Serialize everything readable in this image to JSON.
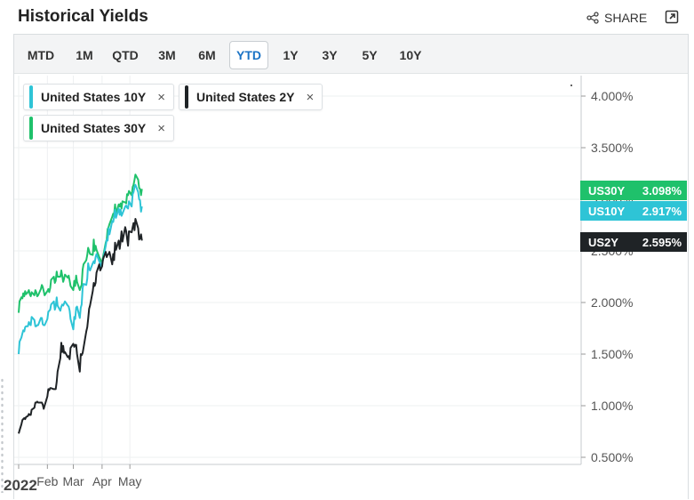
{
  "header": {
    "title": "Historical Yields",
    "share_label": "SHARE"
  },
  "tabs": [
    {
      "label": "MTD",
      "active": false
    },
    {
      "label": "1M",
      "active": false
    },
    {
      "label": "QTD",
      "active": false
    },
    {
      "label": "3M",
      "active": false
    },
    {
      "label": "6M",
      "active": false
    },
    {
      "label": "YTD",
      "active": true
    },
    {
      "label": "1Y",
      "active": false
    },
    {
      "label": "3Y",
      "active": false
    },
    {
      "label": "5Y",
      "active": false
    },
    {
      "label": "10Y",
      "active": false
    }
  ],
  "legend": [
    {
      "label": "United States 10Y",
      "color": "#2ec4d6",
      "remove_symbol": "×"
    },
    {
      "label": "United States 2Y",
      "color": "#1f2326",
      "remove_symbol": "×"
    },
    {
      "label": "United States 30Y",
      "color": "#1fc16b",
      "remove_symbol": "×"
    }
  ],
  "last_value_tags": [
    {
      "symbol": "US30Y",
      "value": "3.098%",
      "color": "#1fc16b"
    },
    {
      "symbol": "US10Y",
      "value": "2.917%",
      "color": "#2ec4d6"
    },
    {
      "symbol": "US2Y",
      "value": "2.595%",
      "color": "#1f2326"
    }
  ],
  "chart_data": {
    "type": "line",
    "title": "",
    "xlabel": "",
    "ylabel": "",
    "x_tick_labels": [
      "2022",
      "Feb",
      "Mar",
      "Apr",
      "May"
    ],
    "x_tick_days": [
      0,
      31,
      59,
      90,
      120
    ],
    "x_range_days": [
      0,
      135
    ],
    "y_tick_labels": [
      "0.500%",
      "1.000%",
      "1.500%",
      "2.000%",
      "2.500%",
      "3.000%",
      "3.500%",
      "4.000%"
    ],
    "y_ticks": [
      0.5,
      1.0,
      1.5,
      2.0,
      2.5,
      3.0,
      3.5,
      4.0
    ],
    "ylim": [
      0.45,
      4.2
    ],
    "grid": true,
    "series": [
      {
        "name": "United States 30Y",
        "color": "#1fc16b",
        "points": [
          [
            0,
            1.9
          ],
          [
            1,
            2.01
          ],
          [
            3,
            2.05
          ],
          [
            4,
            2.04
          ],
          [
            5,
            2.09
          ],
          [
            6,
            2.06
          ],
          [
            7,
            2.11
          ],
          [
            8,
            2.08
          ],
          [
            10,
            2.1
          ],
          [
            11,
            2.12
          ],
          [
            12,
            2.08
          ],
          [
            13,
            2.06
          ],
          [
            14,
            2.1
          ],
          [
            17,
            2.07
          ],
          [
            18,
            2.12
          ],
          [
            19,
            2.1
          ],
          [
            20,
            2.06
          ],
          [
            21,
            2.07
          ],
          [
            24,
            2.13
          ],
          [
            25,
            2.17
          ],
          [
            26,
            2.15
          ],
          [
            27,
            2.11
          ],
          [
            28,
            2.07
          ],
          [
            31,
            2.11
          ],
          [
            32,
            2.13
          ],
          [
            33,
            2.1
          ],
          [
            34,
            2.14
          ],
          [
            35,
            2.22
          ],
          [
            38,
            2.25
          ],
          [
            39,
            2.19
          ],
          [
            40,
            2.21
          ],
          [
            41,
            2.3
          ],
          [
            42,
            2.25
          ],
          [
            45,
            2.25
          ],
          [
            46,
            2.31
          ],
          [
            47,
            2.26
          ],
          [
            48,
            2.2
          ],
          [
            49,
            2.23
          ],
          [
            50,
            2.27
          ],
          [
            53,
            2.24
          ],
          [
            54,
            2.26
          ],
          [
            55,
            2.21
          ],
          [
            56,
            2.16
          ],
          [
            59,
            2.12
          ],
          [
            60,
            2.21
          ],
          [
            61,
            2.16
          ],
          [
            62,
            2.26
          ],
          [
            63,
            2.2
          ],
          [
            66,
            2.12
          ],
          [
            67,
            2.15
          ],
          [
            68,
            2.17
          ],
          [
            69,
            2.32
          ],
          [
            70,
            2.37
          ],
          [
            73,
            2.41
          ],
          [
            74,
            2.46
          ],
          [
            75,
            2.53
          ],
          [
            76,
            2.5
          ],
          [
            77,
            2.47
          ],
          [
            80,
            2.46
          ],
          [
            81,
            2.61
          ],
          [
            82,
            2.5
          ],
          [
            83,
            2.55
          ],
          [
            84,
            2.51
          ],
          [
            87,
            2.44
          ],
          [
            88,
            2.42
          ],
          [
            89,
            2.4
          ],
          [
            90,
            2.38
          ],
          [
            91,
            2.44
          ],
          [
            94,
            2.58
          ],
          [
            95,
            2.61
          ],
          [
            96,
            2.71
          ],
          [
            97,
            2.73
          ],
          [
            98,
            2.76
          ],
          [
            101,
            2.83
          ],
          [
            102,
            2.86
          ],
          [
            103,
            2.86
          ],
          [
            104,
            2.95
          ],
          [
            105,
            2.86
          ],
          [
            108,
            2.95
          ],
          [
            109,
            2.93
          ],
          [
            110,
            2.96
          ],
          [
            111,
            2.91
          ],
          [
            112,
            2.98
          ],
          [
            115,
            2.97
          ],
          [
            116,
            2.96
          ],
          [
            117,
            3.05
          ],
          [
            118,
            3.04
          ],
          [
            119,
            3.08
          ],
          [
            122,
            3.04
          ],
          [
            123,
            3.12
          ],
          [
            124,
            3.14
          ],
          [
            125,
            3.19
          ],
          [
            126,
            3.24
          ],
          [
            129,
            3.19
          ],
          [
            130,
            3.11
          ],
          [
            131,
            3.1
          ],
          [
            132,
            3.04
          ],
          [
            133,
            3.1
          ]
        ]
      },
      {
        "name": "United States 10Y",
        "color": "#2ec4d6",
        "points": [
          [
            0,
            1.5
          ],
          [
            1,
            1.62
          ],
          [
            3,
            1.66
          ],
          [
            4,
            1.7
          ],
          [
            5,
            1.73
          ],
          [
            6,
            1.72
          ],
          [
            7,
            1.76
          ],
          [
            8,
            1.77
          ],
          [
            10,
            1.77
          ],
          [
            11,
            1.81
          ],
          [
            12,
            1.79
          ],
          [
            13,
            1.78
          ],
          [
            14,
            1.86
          ],
          [
            17,
            1.83
          ],
          [
            18,
            1.77
          ],
          [
            19,
            1.77
          ],
          [
            20,
            1.78
          ],
          [
            21,
            1.78
          ],
          [
            24,
            1.85
          ],
          [
            25,
            1.85
          ],
          [
            26,
            1.79
          ],
          [
            27,
            1.78
          ],
          [
            28,
            1.78
          ],
          [
            31,
            1.84
          ],
          [
            32,
            1.91
          ],
          [
            33,
            1.92
          ],
          [
            34,
            1.93
          ],
          [
            35,
            1.98
          ],
          [
            38,
            2.01
          ],
          [
            39,
            1.93
          ],
          [
            40,
            1.96
          ],
          [
            41,
            2.05
          ],
          [
            42,
            1.97
          ],
          [
            45,
            1.92
          ],
          [
            46,
            1.96
          ],
          [
            47,
            1.98
          ],
          [
            48,
            1.97
          ],
          [
            49,
            1.99
          ],
          [
            50,
            2.01
          ],
          [
            53,
            1.97
          ],
          [
            54,
            1.96
          ],
          [
            55,
            1.92
          ],
          [
            56,
            1.84
          ],
          [
            59,
            1.74
          ],
          [
            60,
            1.86
          ],
          [
            61,
            1.84
          ],
          [
            62,
            1.95
          ],
          [
            63,
            1.96
          ],
          [
            66,
            1.85
          ],
          [
            67,
            1.95
          ],
          [
            68,
            1.98
          ],
          [
            69,
            2.14
          ],
          [
            70,
            2.18
          ],
          [
            73,
            2.17
          ],
          [
            74,
            2.23
          ],
          [
            75,
            2.38
          ],
          [
            76,
            2.33
          ],
          [
            77,
            2.31
          ],
          [
            80,
            2.38
          ],
          [
            81,
            2.4
          ],
          [
            82,
            2.38
          ],
          [
            83,
            2.44
          ],
          [
            84,
            2.47
          ],
          [
            87,
            2.4
          ],
          [
            88,
            2.37
          ],
          [
            89,
            2.35
          ],
          [
            90,
            2.39
          ],
          [
            91,
            2.41
          ],
          [
            94,
            2.55
          ],
          [
            95,
            2.61
          ],
          [
            96,
            2.6
          ],
          [
            97,
            2.72
          ],
          [
            98,
            2.66
          ],
          [
            101,
            2.79
          ],
          [
            102,
            2.78
          ],
          [
            103,
            2.83
          ],
          [
            104,
            2.9
          ],
          [
            105,
            2.82
          ],
          [
            108,
            2.91
          ],
          [
            109,
            2.85
          ],
          [
            110,
            2.9
          ],
          [
            111,
            2.84
          ],
          [
            112,
            2.86
          ],
          [
            115,
            2.93
          ],
          [
            116,
            2.94
          ],
          [
            117,
            2.92
          ],
          [
            118,
            2.91
          ],
          [
            119,
            2.98
          ],
          [
            122,
            2.93
          ],
          [
            123,
            3.05
          ],
          [
            124,
            3.07
          ],
          [
            125,
            3.12
          ],
          [
            126,
            3.14
          ],
          [
            129,
            3.07
          ],
          [
            130,
            3.0
          ],
          [
            131,
            2.99
          ],
          [
            132,
            2.88
          ],
          [
            133,
            2.93
          ]
        ]
      },
      {
        "name": "United States 2Y",
        "color": "#1f2326",
        "points": [
          [
            0,
            0.73
          ],
          [
            1,
            0.76
          ],
          [
            3,
            0.82
          ],
          [
            4,
            0.86
          ],
          [
            5,
            0.87
          ],
          [
            6,
            0.88
          ],
          [
            7,
            0.87
          ],
          [
            8,
            0.89
          ],
          [
            10,
            0.9
          ],
          [
            11,
            0.92
          ],
          [
            12,
            0.91
          ],
          [
            13,
            0.91
          ],
          [
            14,
            0.96
          ],
          [
            17,
            0.98
          ],
          [
            18,
            1.03
          ],
          [
            19,
            1.03
          ],
          [
            20,
            1.04
          ],
          [
            21,
            1.03
          ],
          [
            24,
            1.03
          ],
          [
            25,
            1.03
          ],
          [
            26,
            1.01
          ],
          [
            27,
            0.97
          ],
          [
            28,
            1.0
          ],
          [
            31,
            1.09
          ],
          [
            32,
            1.16
          ],
          [
            33,
            1.15
          ],
          [
            34,
            1.17
          ],
          [
            35,
            1.17
          ],
          [
            38,
            1.16
          ],
          [
            39,
            1.16
          ],
          [
            40,
            1.16
          ],
          [
            41,
            1.23
          ],
          [
            42,
            1.33
          ],
          [
            45,
            1.46
          ],
          [
            46,
            1.61
          ],
          [
            47,
            1.52
          ],
          [
            48,
            1.58
          ],
          [
            49,
            1.51
          ],
          [
            50,
            1.52
          ],
          [
            53,
            1.47
          ],
          [
            54,
            1.48
          ],
          [
            55,
            1.45
          ],
          [
            56,
            1.56
          ],
          [
            59,
            1.6
          ],
          [
            60,
            1.57
          ],
          [
            61,
            1.59
          ],
          [
            62,
            1.59
          ],
          [
            63,
            1.5
          ],
          [
            66,
            1.33
          ],
          [
            67,
            1.5
          ],
          [
            68,
            1.49
          ],
          [
            69,
            1.51
          ],
          [
            70,
            1.56
          ],
          [
            73,
            1.72
          ],
          [
            74,
            1.76
          ],
          [
            75,
            1.84
          ],
          [
            76,
            1.94
          ],
          [
            77,
            1.97
          ],
          [
            80,
            2.11
          ],
          [
            81,
            2.19
          ],
          [
            82,
            2.16
          ],
          [
            83,
            2.19
          ],
          [
            84,
            2.29
          ],
          [
            87,
            2.37
          ],
          [
            88,
            2.31
          ],
          [
            89,
            2.33
          ],
          [
            90,
            2.35
          ],
          [
            91,
            2.42
          ],
          [
            94,
            2.49
          ],
          [
            95,
            2.44
          ],
          [
            96,
            2.46
          ],
          [
            97,
            2.47
          ],
          [
            98,
            2.49
          ],
          [
            101,
            2.37
          ],
          [
            102,
            2.47
          ],
          [
            103,
            2.41
          ],
          [
            104,
            2.58
          ],
          [
            105,
            2.51
          ],
          [
            108,
            2.6
          ],
          [
            109,
            2.52
          ],
          [
            110,
            2.59
          ],
          [
            111,
            2.69
          ],
          [
            112,
            2.59
          ],
          [
            115,
            2.73
          ],
          [
            116,
            2.69
          ],
          [
            117,
            2.62
          ],
          [
            118,
            2.55
          ],
          [
            119,
            2.69
          ],
          [
            122,
            2.68
          ],
          [
            123,
            2.73
          ],
          [
            124,
            2.77
          ],
          [
            125,
            2.7
          ],
          [
            126,
            2.81
          ],
          [
            129,
            2.72
          ],
          [
            130,
            2.61
          ],
          [
            131,
            2.62
          ],
          [
            132,
            2.66
          ],
          [
            133,
            2.6
          ]
        ]
      }
    ]
  }
}
